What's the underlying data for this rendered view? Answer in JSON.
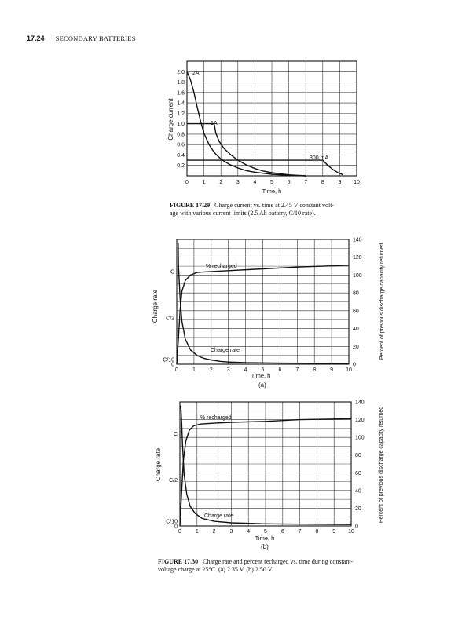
{
  "header": {
    "page_number": "17.24",
    "section": "SECONDARY BATTERIES"
  },
  "figure_29": {
    "caption_label": "FIGURE 17.29",
    "caption_line1": "Charge current vs. time at 2.45 V constant volt-",
    "caption_line2": "age with various current limits (2.5 Ah battery, C/10 rate)."
  },
  "figure_30": {
    "caption_label": "FIGURE 17.30",
    "caption_line1": "Charge rate and percent recharged vs. time during constant-",
    "caption_line2": "voltage charge at 25°C. (a) 2.35 V. (b) 2.50 V.",
    "sub_a": "(a)",
    "sub_b": "(b)"
  },
  "chart_data": [
    {
      "type": "line",
      "ylabel": "Charge current",
      "xlabel": "Time, h",
      "xlim": [
        0,
        10
      ],
      "ylim": [
        0,
        2.2
      ],
      "x_ticks": [
        "0",
        "1",
        "2",
        "3",
        "4",
        "5",
        "6",
        "7",
        "8",
        "9",
        "10"
      ],
      "y_ticks": [
        "0.2",
        "0.4",
        "0.6",
        "0.8",
        "1.0",
        "1.2",
        "1.4",
        "1.6",
        "1.8",
        "2.0"
      ],
      "grid": true,
      "annotations": [
        "2A",
        "1A",
        "300 mA"
      ],
      "series": [
        {
          "x": [
            0,
            0.2,
            0.4,
            0.6,
            0.8,
            1,
            1.3,
            1.6,
            2,
            2.5,
            3,
            3.5,
            4,
            5,
            6,
            7
          ],
          "y": [
            2.0,
            1.85,
            1.62,
            1.32,
            1.05,
            0.82,
            0.6,
            0.45,
            0.32,
            0.22,
            0.15,
            0.1,
            0.07,
            0.03,
            0.01,
            0
          ]
        },
        {
          "x": [
            0,
            1.6,
            1.7,
            1.9,
            2.2,
            2.6,
            3,
            3.5,
            4,
            4.5,
            5,
            6,
            7
          ],
          "y": [
            1.0,
            1.0,
            0.82,
            0.66,
            0.52,
            0.4,
            0.3,
            0.21,
            0.14,
            0.09,
            0.06,
            0.02,
            0
          ]
        },
        {
          "x": [
            0,
            8,
            8.3,
            8.6,
            8.9,
            9.2
          ],
          "y": [
            0.3,
            0.3,
            0.2,
            0.12,
            0.06,
            0.02
          ]
        }
      ]
    },
    {
      "type": "line",
      "panel": "(a)",
      "ylabel": "Charge rate",
      "y2label": "Percent of previous discharge capacity returned",
      "xlabel": "Time, h",
      "xlim": [
        0,
        10
      ],
      "ylim": [
        0,
        140
      ],
      "x_ticks": [
        "0",
        "1",
        "2",
        "3",
        "4",
        "5",
        "6",
        "7",
        "8",
        "9",
        "10"
      ],
      "y_ticks": [
        "0",
        "C/10",
        "C/2",
        "C"
      ],
      "y2_ticks": [
        "0",
        "20",
        "40",
        "60",
        "80",
        "100",
        "120",
        "140"
      ],
      "grid": true,
      "annotations": [
        "% recharged",
        "Charge rate"
      ],
      "series": [
        {
          "x": [
            0,
            0.1,
            0.2,
            0.3,
            0.5,
            0.8,
            1.2,
            2,
            3,
            5,
            7,
            10
          ],
          "y": [
            0,
            30,
            62,
            82,
            94,
            100,
            103,
            104,
            105,
            107,
            109,
            111
          ]
        },
        {
          "x": [
            0.08,
            0.1,
            0.2,
            0.3,
            0.5,
            0.8,
            1.2,
            1.6,
            2,
            2.5,
            3,
            4,
            6,
            10
          ],
          "y": [
            136,
            110,
            72,
            48,
            28,
            16,
            9.5,
            6.5,
            4.8,
            3.3,
            2.5,
            1.8,
            1.2,
            0.9
          ]
        }
      ]
    },
    {
      "type": "line",
      "panel": "(b)",
      "ylabel": "Charge rate",
      "y2label": "Percent of previous discharge capacity returned",
      "xlabel": "Time, h",
      "xlim": [
        0,
        10
      ],
      "ylim": [
        0,
        140
      ],
      "x_ticks": [
        "0",
        "1",
        "2",
        "3",
        "4",
        "5",
        "6",
        "7",
        "8",
        "9",
        "10"
      ],
      "y_ticks": [
        "0",
        "C/10",
        "C/2",
        "C"
      ],
      "y2_ticks": [
        "0",
        "20",
        "40",
        "60",
        "80",
        "100",
        "120",
        "140"
      ],
      "grid": true,
      "annotations": [
        "% recharged",
        "Charge rate"
      ],
      "series": [
        {
          "x": [
            0,
            0.1,
            0.2,
            0.35,
            0.55,
            0.8,
            1.2,
            2,
            3,
            5,
            7,
            10
          ],
          "y": [
            0,
            38,
            74,
            96,
            108,
            113,
            115,
            116,
            117,
            118,
            120,
            121
          ]
        },
        {
          "x": [
            0.05,
            0.1,
            0.15,
            0.25,
            0.4,
            0.6,
            0.9,
            1.3,
            2,
            3,
            5,
            10
          ],
          "y": [
            136,
            118,
            92,
            58,
            36,
            22,
            14,
            8.5,
            5.2,
            3.5,
            2.4,
            1.6
          ]
        }
      ]
    }
  ]
}
